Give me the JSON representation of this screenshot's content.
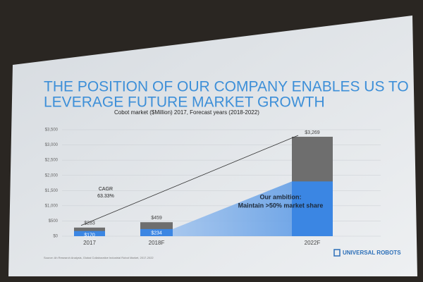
{
  "chart_data": {
    "type": "bar",
    "title": [
      "THE POSITION OF OUR COMPANY ENABLES US TO",
      "LEVERAGE FUTURE MARKET GROWTH"
    ],
    "subtitle": "Cobot market ($Million) 2017, Forecast years (2018-2022)",
    "categories": [
      "2017",
      "2018F",
      "2022F"
    ],
    "series": [
      {
        "color": "#6e6e6e",
        "values": [
          283,
          459,
          3269
        ],
        "value_labels": [
          "$283",
          "$459",
          "$3,269"
        ]
      },
      {
        "color": "#3b86e3",
        "values": [
          170,
          234,
          1800
        ],
        "value_labels": [
          "$170",
          "$234",
          null
        ]
      }
    ],
    "ylim": [
      0,
      3500
    ],
    "yticks": [
      {
        "value": 0,
        "label": "$0"
      },
      {
        "value": 500,
        "label": "$500"
      },
      {
        "value": 1000,
        "label": "$1,000"
      },
      {
        "value": 1500,
        "label": "$1,500"
      },
      {
        "value": 2000,
        "label": "$2,000"
      },
      {
        "value": 2500,
        "label": "$2,500"
      },
      {
        "value": 3000,
        "label": "$3,000"
      },
      {
        "value": 3500,
        "label": "$3,500"
      }
    ],
    "grid": true,
    "annotations": [
      [
        "CAGR",
        "63.33%"
      ],
      [
        "Our ambition:",
        "Maintain >50% market share"
      ]
    ],
    "source": "Source: Ah Research Analysis, Global Collaborative Industrial Robot Market, 2017-2022",
    "logo": "UNIVERSAL ROBOTS"
  }
}
